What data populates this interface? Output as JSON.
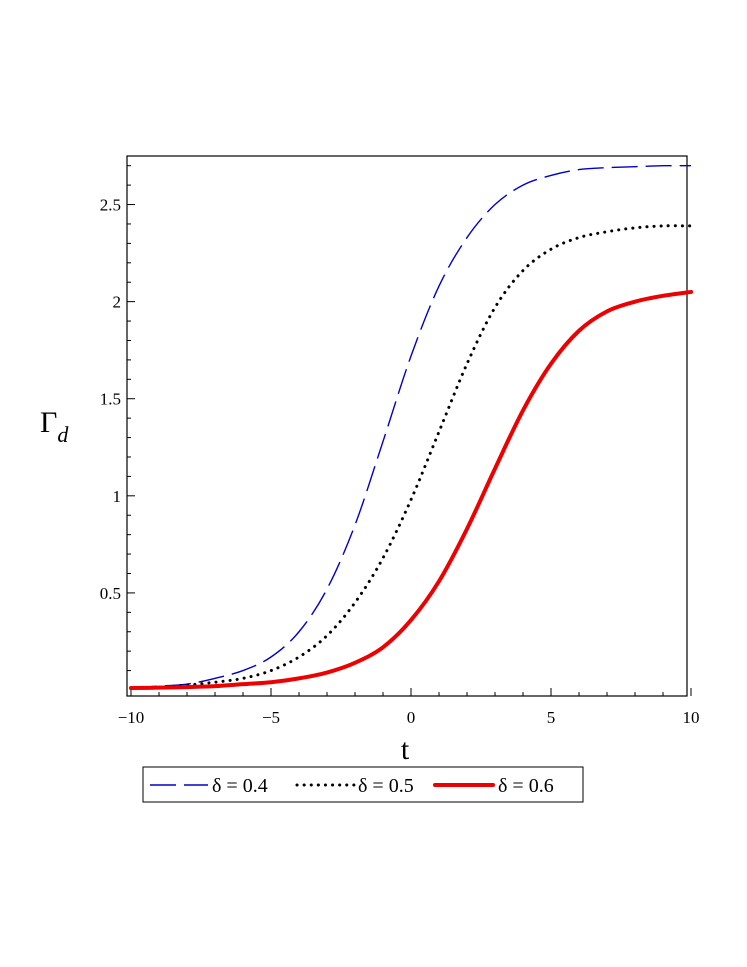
{
  "chart_data": {
    "type": "line",
    "xlabel": "t",
    "ylabel": "Γ",
    "ylabel_sub": "d",
    "xlim": [
      -10,
      10
    ],
    "ylim": [
      0,
      2.75
    ],
    "x_ticks": [
      -10,
      -5,
      0,
      5,
      10
    ],
    "x_tick_labels": [
      "−10",
      "−5",
      "0",
      "5",
      "10"
    ],
    "y_ticks": [
      0.5,
      1,
      1.5,
      2,
      2.5
    ],
    "y_tick_labels": [
      "0.5",
      "1",
      "1.5",
      "2",
      "2.5"
    ],
    "grid": false,
    "legend_position": "bottom",
    "series": [
      {
        "name": "δ = 0.4",
        "color": "#0000cc",
        "style": "dash",
        "x": [
          -10,
          -9,
          -8,
          -7,
          -6,
          -5,
          -4,
          -3,
          -2,
          -1,
          0,
          1,
          2,
          3,
          4,
          5,
          6,
          7,
          8,
          9,
          10
        ],
        "y": [
          0.01,
          0.02,
          0.03,
          0.06,
          0.1,
          0.17,
          0.3,
          0.52,
          0.85,
          1.28,
          1.72,
          2.08,
          2.33,
          2.5,
          2.6,
          2.65,
          2.68,
          2.69,
          2.695,
          2.7,
          2.7
        ]
      },
      {
        "name": "δ = 0.5",
        "color": "#000000",
        "style": "dot",
        "x": [
          -10,
          -9,
          -8,
          -7,
          -6,
          -5,
          -4,
          -3,
          -2,
          -1,
          0,
          1,
          2,
          3,
          4,
          5,
          6,
          7,
          8,
          9,
          10
        ],
        "y": [
          0.01,
          0.015,
          0.025,
          0.04,
          0.06,
          0.1,
          0.17,
          0.28,
          0.45,
          0.68,
          0.98,
          1.33,
          1.68,
          1.97,
          2.16,
          2.27,
          2.33,
          2.36,
          2.38,
          2.39,
          2.39
        ]
      },
      {
        "name": "δ = 0.6",
        "color": "#ee0000",
        "style": "solid",
        "x": [
          -10,
          -9,
          -8,
          -7,
          -6,
          -5,
          -4,
          -3,
          -2,
          -1,
          0,
          1,
          2,
          3,
          4,
          5,
          6,
          7,
          8,
          9,
          10
        ],
        "y": [
          0.01,
          0.012,
          0.015,
          0.02,
          0.03,
          0.04,
          0.06,
          0.09,
          0.14,
          0.22,
          0.36,
          0.56,
          0.83,
          1.14,
          1.44,
          1.68,
          1.85,
          1.95,
          2.0,
          2.03,
          2.05
        ]
      }
    ]
  }
}
